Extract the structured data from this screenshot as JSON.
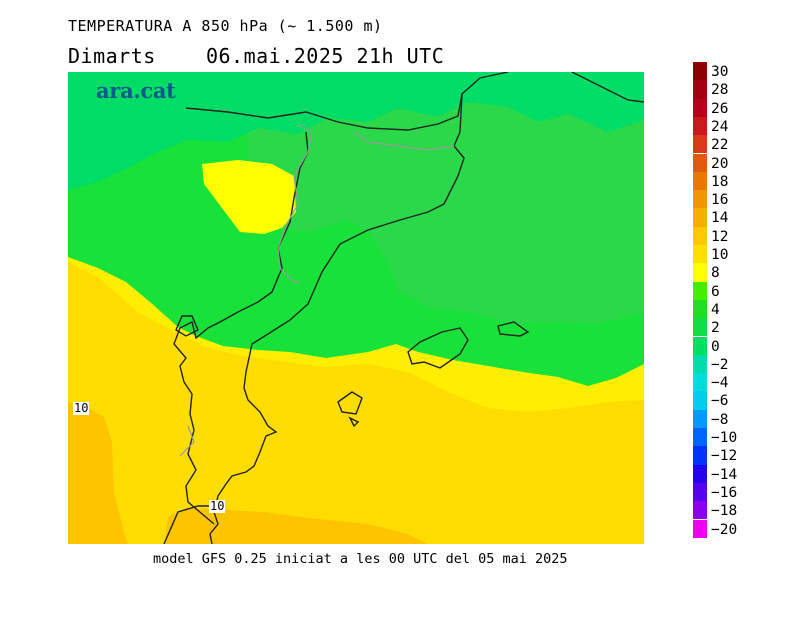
{
  "header": {
    "title": "TEMPERATURA A 850 hPa (~ 1.500 m)",
    "subtitle": "Dimarts    06.mai.2025 21h UTC"
  },
  "brand": {
    "logo_text": "ara.cat"
  },
  "footer": {
    "model_info": "model GFS 0.25 iniciat a les 00 UTC del 05 mai 2025"
  },
  "map": {
    "contour_labels": [
      "10",
      "10"
    ],
    "colors": {
      "temp_8_10": "#ffff00",
      "temp_10_12": "#ffe000",
      "temp_12_14": "#ffc800",
      "temp_6_8": "#ffff00",
      "temp_4_6": "#22dd22",
      "temp_2_4": "#11e844",
      "temp_0_2": "#00e060",
      "coastline": "#222222",
      "border": "#999999"
    }
  },
  "legend": {
    "labels": [
      "30",
      "28",
      "26",
      "24",
      "22",
      "20",
      "18",
      "16",
      "14",
      "12",
      "10",
      "8",
      "6",
      "4",
      "2",
      "0",
      "−2",
      "−4",
      "−6",
      "−8",
      "−10",
      "−12",
      "−14",
      "−16",
      "−18",
      "−20"
    ],
    "colors": [
      "#8b0000",
      "#a00010",
      "#b8001c",
      "#c81a1a",
      "#d83a1a",
      "#e05a10",
      "#e87800",
      "#f09400",
      "#f8ae00",
      "#ffc800",
      "#ffe000",
      "#ffff00",
      "#44ee00",
      "#22dd22",
      "#11dd44",
      "#00e060",
      "#00ddaa",
      "#00dddd",
      "#00ccee",
      "#0099ff",
      "#0066ff",
      "#0033ff",
      "#2200ee",
      "#5500ee",
      "#8800ee",
      "#ee00ee"
    ]
  }
}
